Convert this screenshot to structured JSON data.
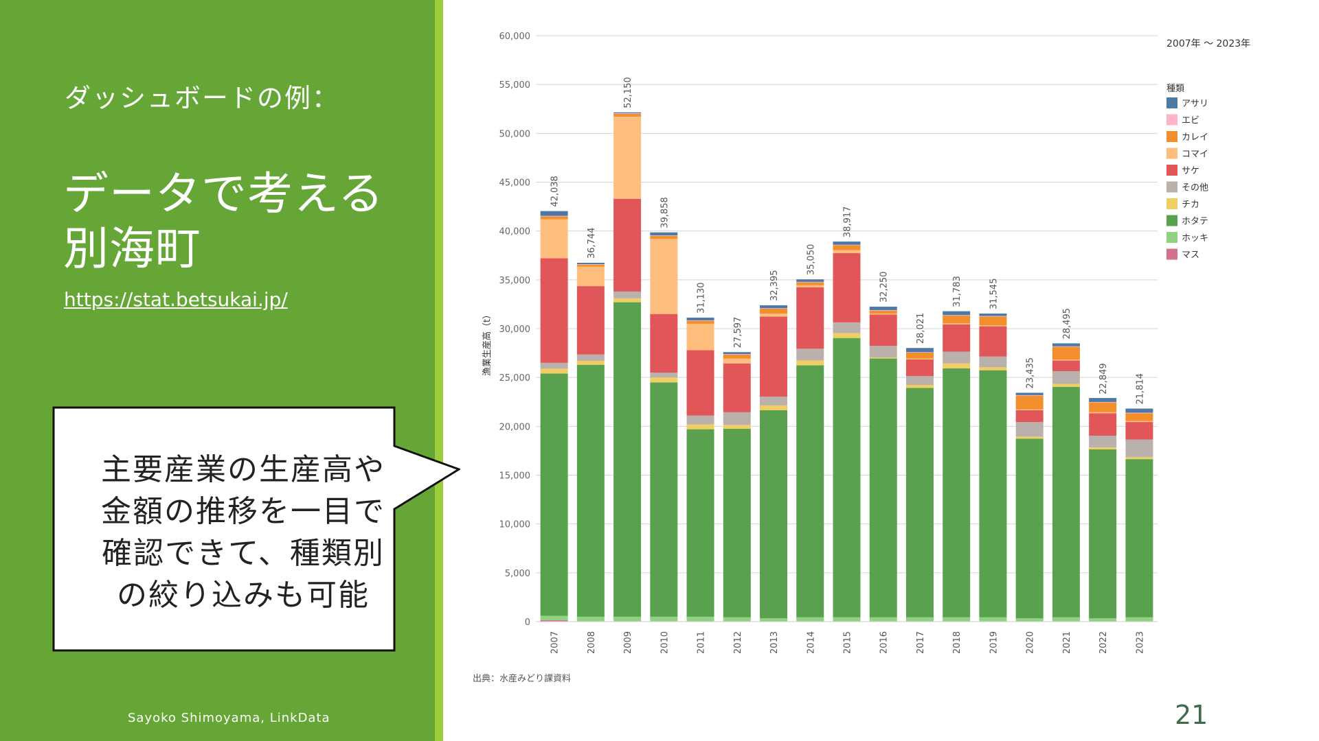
{
  "slide": {
    "subtitle": "ダッシュボードの例：",
    "title_line1": "データで考える",
    "title_line2": "別海町",
    "link": "https://stat.betsukai.jp/",
    "callout_line1": "主要産業の生産高や",
    "callout_line2": "金額の推移を一目で",
    "callout_line3": "確認できて、種類別",
    "callout_line4": "の絞り込みも可能",
    "author": "Sayoko Shimoyama, LinkData",
    "page_number": "21"
  },
  "colors": {
    "panel_green": "#65a637",
    "stripe_green": "#9ccc3c"
  },
  "chart_data": {
    "type": "bar",
    "stacked": true,
    "date_range_label": "2007年 ～ 2023年",
    "ylabel": "漁業生産高（t）",
    "source": "出典：水産みどり課資料",
    "legend_title": "種類",
    "legend_position": "right",
    "grid": true,
    "ylim": [
      0,
      60000
    ],
    "yticks": [
      "0",
      "5,000",
      "10,000",
      "15,000",
      "20,000",
      "25,000",
      "30,000",
      "35,000",
      "40,000",
      "45,000",
      "50,000",
      "55,000",
      "60,000"
    ],
    "categories": [
      "2007",
      "2008",
      "2009",
      "2010",
      "2011",
      "2012",
      "2013",
      "2014",
      "2015",
      "2016",
      "2017",
      "2018",
      "2019",
      "2020",
      "2021",
      "2022",
      "2023"
    ],
    "totals": [
      42038,
      36744,
      52150,
      39858,
      31130,
      27597,
      32395,
      35050,
      38917,
      32250,
      28021,
      31783,
      31545,
      23435,
      28495,
      22849,
      21814
    ],
    "total_labels": [
      "42,038",
      "36,744",
      "52,150",
      "39,858",
      "31,130",
      "27,597",
      "32,395",
      "35,050",
      "38,917",
      "32,250",
      "28,021",
      "31,783",
      "31,545",
      "23,435",
      "28,495",
      "22,849",
      "21,814"
    ],
    "series": [
      {
        "name": "マス",
        "color": "#d3728f",
        "values": [
          150,
          50,
          50,
          50,
          50,
          40,
          40,
          40,
          40,
          40,
          40,
          40,
          40,
          40,
          40,
          40,
          40
        ]
      },
      {
        "name": "ホッキ",
        "color": "#8fd27f",
        "values": [
          450,
          450,
          450,
          450,
          450,
          400,
          300,
          400,
          400,
          400,
          400,
          400,
          400,
          300,
          400,
          300,
          400
        ]
      },
      {
        "name": "ホタテ",
        "color": "#59a14f",
        "values": [
          24800,
          25800,
          32200,
          24000,
          19200,
          19300,
          21300,
          25800,
          28600,
          26500,
          23500,
          25500,
          25300,
          18400,
          23600,
          17300,
          16200
        ]
      },
      {
        "name": "チカ",
        "color": "#f1ce63",
        "values": [
          500,
          400,
          400,
          500,
          500,
          400,
          500,
          500,
          500,
          100,
          300,
          500,
          300,
          200,
          300,
          200,
          200
        ]
      },
      {
        "name": "その他",
        "color": "#bab0ac",
        "values": [
          600,
          650,
          700,
          500,
          900,
          1300,
          900,
          1200,
          1100,
          1200,
          900,
          1200,
          1100,
          1500,
          1300,
          1200,
          1800
        ]
      },
      {
        "name": "サケ",
        "color": "#e15759",
        "values": [
          10700,
          7000,
          9500,
          6000,
          6700,
          5000,
          8200,
          6300,
          7100,
          3200,
          1700,
          2800,
          3100,
          1200,
          1100,
          2300,
          1800
        ]
      },
      {
        "name": "コマイ",
        "color": "#ffbe7d",
        "values": [
          4000,
          2000,
          8400,
          7700,
          2700,
          500,
          300,
          200,
          300,
          100,
          100,
          100,
          100,
          100,
          100,
          100,
          100
        ]
      },
      {
        "name": "カレイ",
        "color": "#f28e2b",
        "values": [
          300,
          200,
          300,
          300,
          300,
          400,
          500,
          300,
          500,
          300,
          600,
          800,
          900,
          1400,
          1300,
          1000,
          800
        ]
      },
      {
        "name": "エビ",
        "color": "#ffb5c8",
        "values": [
          50,
          50,
          50,
          50,
          50,
          50,
          50,
          50,
          50,
          50,
          50,
          50,
          50,
          50,
          50,
          50,
          50
        ]
      },
      {
        "name": "アサリ",
        "color": "#4e79a7",
        "values": [
          488,
          144,
          100,
          308,
          280,
          207,
          305,
          260,
          327,
          360,
          431,
          393,
          255,
          245,
          305,
          409,
          424
        ]
      }
    ],
    "legend_order": [
      "アサリ",
      "エビ",
      "カレイ",
      "コマイ",
      "サケ",
      "その他",
      "チカ",
      "ホタテ",
      "ホッキ",
      "マス"
    ]
  }
}
